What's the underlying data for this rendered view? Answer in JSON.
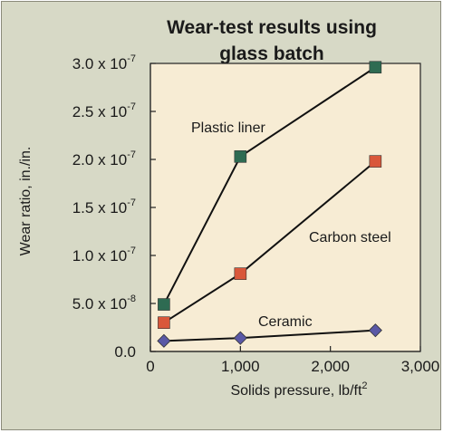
{
  "chart_data": {
    "type": "line",
    "title_lines": [
      "Wear-test results using",
      "glass batch"
    ],
    "xlabel": "Solids pressure, lb/ft",
    "xlabel_superscript": "2",
    "ylabel": "Wear ratio, in./in.",
    "xlim": [
      0,
      3000
    ],
    "ylim": [
      0,
      3e-07
    ],
    "x_ticks": [
      {
        "value": 0,
        "label": "0"
      },
      {
        "value": 1000,
        "label": "1,000"
      },
      {
        "value": 2000,
        "label": "2,000"
      },
      {
        "value": 3000,
        "label": "3,000"
      }
    ],
    "y_ticks": [
      {
        "value": 0,
        "mantissa": "0.0",
        "exp": ""
      },
      {
        "value": 5e-08,
        "mantissa": "5.0 x 10",
        "exp": "-8"
      },
      {
        "value": 1e-07,
        "mantissa": "1.0 x 10",
        "exp": "-7"
      },
      {
        "value": 1.5e-07,
        "mantissa": "1.5 x 10",
        "exp": "-7"
      },
      {
        "value": 2e-07,
        "mantissa": "2.0 x 10",
        "exp": "-7"
      },
      {
        "value": 2.5e-07,
        "mantissa": "2.5 x 10",
        "exp": "-7"
      },
      {
        "value": 3e-07,
        "mantissa": "3.0 x 10",
        "exp": "-7"
      }
    ],
    "grid": false,
    "series": [
      {
        "name": "Plastic liner",
        "marker": "square",
        "color": "#2e6b52",
        "x": [
          150,
          1000,
          2500
        ],
        "y": [
          4.9e-08,
          2.03e-07,
          2.96e-07
        ]
      },
      {
        "name": "Carbon steel",
        "marker": "square",
        "color": "#d9573a",
        "x": [
          150,
          1000,
          2500
        ],
        "y": [
          3e-08,
          8.1e-08,
          1.98e-07
        ]
      },
      {
        "name": "Ceramic",
        "marker": "diamond",
        "color": "#5a58a6",
        "x": [
          150,
          1000,
          2500
        ],
        "y": [
          1.1e-08,
          1.4e-08,
          2.2e-08
        ]
      }
    ],
    "colors": {
      "background": "#d7d9c6",
      "plot_area": "#f7ecd4"
    }
  }
}
